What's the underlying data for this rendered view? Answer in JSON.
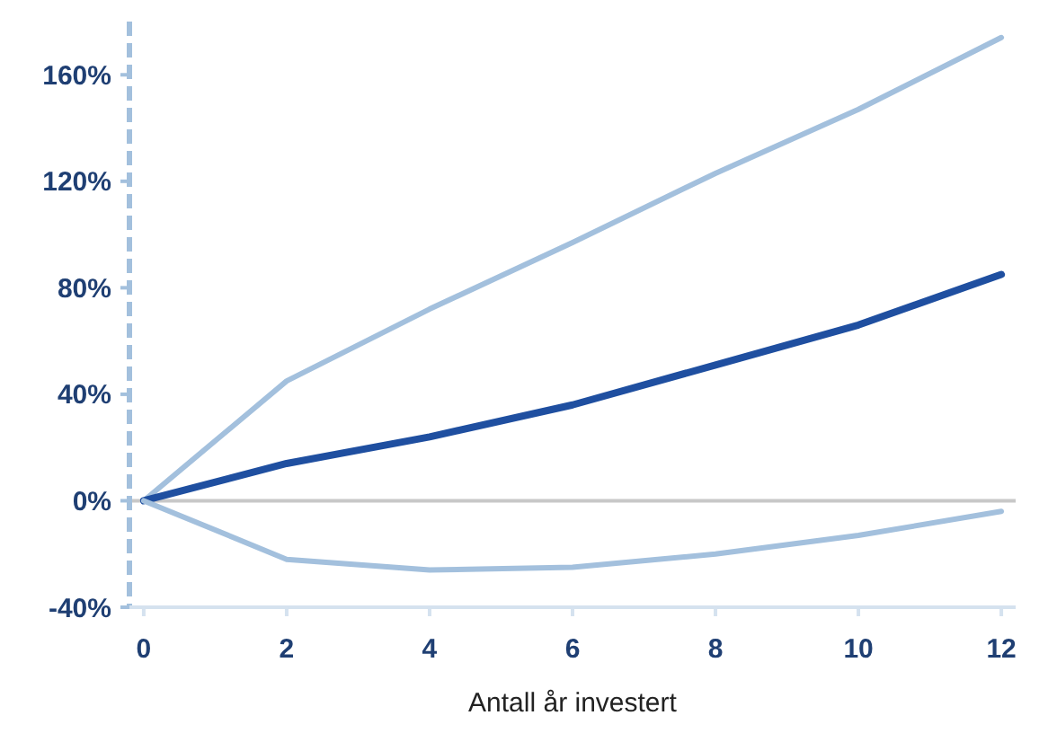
{
  "chart_data": {
    "type": "line",
    "xlabel": "Antall år investert",
    "x": [
      0,
      2,
      4,
      6,
      8,
      10,
      12
    ],
    "series": [
      {
        "color": "#a3c0dd",
        "values": [
          0,
          45,
          72,
          97,
          123,
          147,
          174
        ]
      },
      {
        "color": "#1f4fa0",
        "values": [
          0,
          14,
          24,
          36,
          51,
          66,
          85
        ]
      },
      {
        "color": "#a3c0dd",
        "values": [
          0,
          -22,
          -26,
          -25,
          -20,
          -13,
          -4
        ]
      }
    ],
    "xlim": [
      -0.2,
      12.2
    ],
    "ylim": [
      -40,
      180
    ],
    "xticks": [
      0,
      2,
      4,
      6,
      8,
      10,
      12
    ],
    "yticks": [
      {
        "value": -40,
        "label": "-40%"
      },
      {
        "value": 0,
        "label": "0%"
      },
      {
        "value": 40,
        "label": "40%"
      },
      {
        "value": 80,
        "label": "80%"
      },
      {
        "value": 120,
        "label": "120%"
      },
      {
        "value": 160,
        "label": "160%"
      }
    ],
    "ref_lines": [
      {
        "axis": "y",
        "value": 0,
        "color": "#c8c8c8"
      }
    ],
    "marker": "none",
    "line_style": "solid"
  }
}
